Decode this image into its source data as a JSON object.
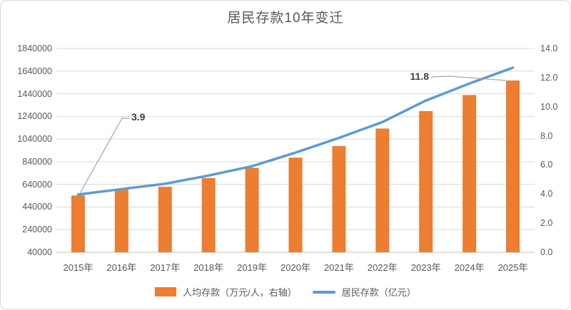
{
  "title": "居民存款10年变迁",
  "annotations": [
    {
      "text": "3.9",
      "target": "2015年"
    },
    {
      "text": "11.8",
      "target": "2025年"
    }
  ],
  "legend": [
    {
      "label": "人均存款（万元/人，右轴）",
      "type": "bar",
      "color": "#ED7D31"
    },
    {
      "label": "居民存款（亿元）",
      "type": "line",
      "color": "#5B9BD5"
    }
  ],
  "colors": {
    "bar": "#ED7D31",
    "line": "#5B9BD5",
    "gridline": "#D9D9D9",
    "axis_line": "#BFBFBF",
    "leader_line": "#A6A6A6",
    "text": "#595959",
    "annotation_text": "#3F3F3F"
  },
  "chart_data": {
    "type": "bar+line combo, dual axis",
    "title": "居民存款10年变迁",
    "categories": [
      "2015年",
      "2016年",
      "2017年",
      "2018年",
      "2019年",
      "2020年",
      "2021年",
      "2022年",
      "2023年",
      "2024年",
      "2025年"
    ],
    "series": [
      {
        "name": "人均存款（万元/人，右轴）",
        "type": "bar",
        "axis": "right",
        "color": "#ED7D31",
        "values": [
          3.9,
          4.3,
          4.5,
          5.1,
          5.8,
          6.5,
          7.3,
          8.5,
          9.7,
          10.8,
          11.8
        ]
      },
      {
        "name": "居民存款（亿元）",
        "type": "line",
        "axis": "left",
        "color": "#5B9BD5",
        "values": [
          550000,
          598000,
          645000,
          718000,
          800000,
          920000,
          1050000,
          1190000,
          1380000,
          1530000,
          1670000
        ]
      }
    ],
    "left_axis": {
      "min": 40000,
      "max": 1840000,
      "step": 200000,
      "ticks": [
        "1840000",
        "1640000",
        "1440000",
        "1240000",
        "1040000",
        "840000",
        "640000",
        "440000",
        "240000",
        "40000"
      ]
    },
    "right_axis": {
      "min": 0.0,
      "max": 14.0,
      "step": 2.0,
      "ticks": [
        "14.0",
        "12.0",
        "10.0",
        "8.0",
        "6.0",
        "4.0",
        "2.0",
        "0.0"
      ]
    },
    "grid": true,
    "legend_position": "bottom",
    "point_labels": [
      {
        "series": "人均存款（万元/人，右轴）",
        "category": "2015年",
        "label": "3.9"
      },
      {
        "series": "人均存款（万元/人，右轴）",
        "category": "2025年",
        "label": "11.8"
      }
    ]
  }
}
